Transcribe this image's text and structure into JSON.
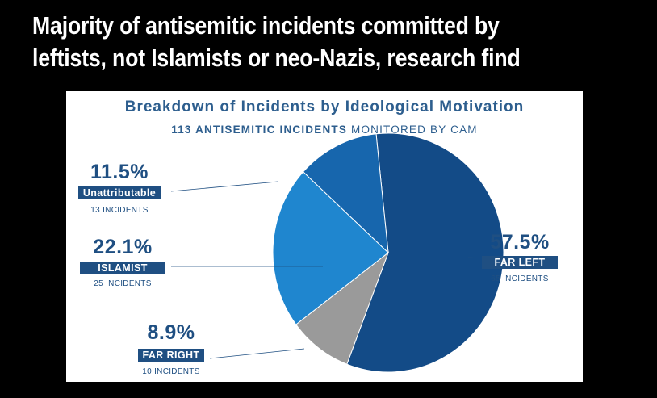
{
  "headline": {
    "line1": "Majority of antisemitic incidents committed by",
    "line2": "leftists, not Islamists or neo-Nazis, research find"
  },
  "chart_data": {
    "type": "pie",
    "title": "Breakdown of Incidents by Ideological Motivation",
    "subtitle_bold": "113 ANTISEMITIC INCIDENTS",
    "subtitle_rest": "MONITORED BY CAM",
    "slices": [
      {
        "label": "FAR LEFT",
        "percent_label": "57.5%",
        "value": 57.5,
        "count_label": "65 INCIDENTS",
        "color": "#134b87"
      },
      {
        "label": "FAR RIGHT",
        "percent_label": "8.9%",
        "value": 8.9,
        "count_label": "10 INCIDENTS",
        "color": "#9a9a9a"
      },
      {
        "label": "ISLAMIST",
        "percent_label": "22.1%",
        "value": 22.1,
        "count_label": "25 INCIDENTS",
        "color": "#1f86cf"
      },
      {
        "label": "Unattributable",
        "percent_label": "11.5%",
        "value": 11.5,
        "count_label": "13 INCIDENTS",
        "color": "#1766ad"
      }
    ]
  }
}
